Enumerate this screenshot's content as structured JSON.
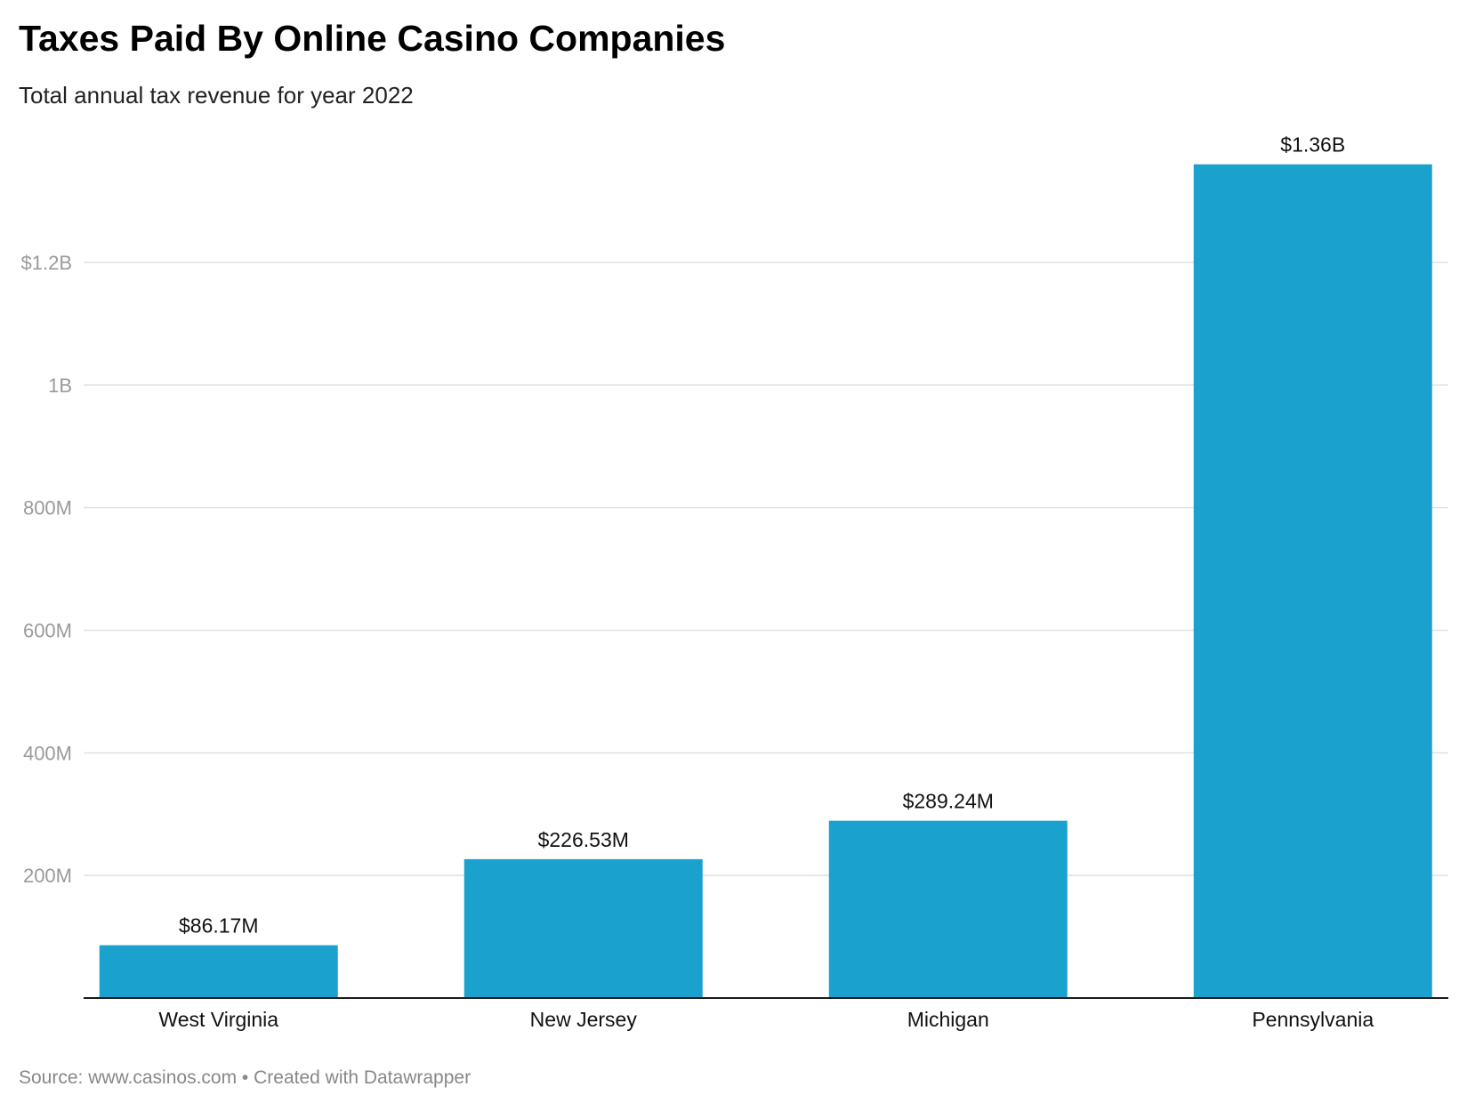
{
  "chart_data": {
    "type": "bar",
    "title": "Taxes Paid By Online Casino Companies",
    "subtitle": "Total annual tax revenue for year 2022",
    "categories": [
      "West Virginia",
      "New Jersey",
      "Michigan",
      "Pennsylvania"
    ],
    "values": [
      86.17,
      226.53,
      289.24,
      1360
    ],
    "unit": "million USD",
    "data_labels": [
      "$86.17M",
      "$226.53M",
      "$289.24M",
      "$1.36B"
    ],
    "yticks": [
      200,
      400,
      600,
      800,
      1000,
      1200
    ],
    "ytick_labels": [
      "200M",
      "400M",
      "600M",
      "800M",
      "1B",
      "$1.2B"
    ],
    "ylim": [
      0,
      1200
    ],
    "grid": true,
    "bar_color": "#1aa1ce",
    "source": "Source: www.casinos.com • Created with Datawrapper"
  }
}
